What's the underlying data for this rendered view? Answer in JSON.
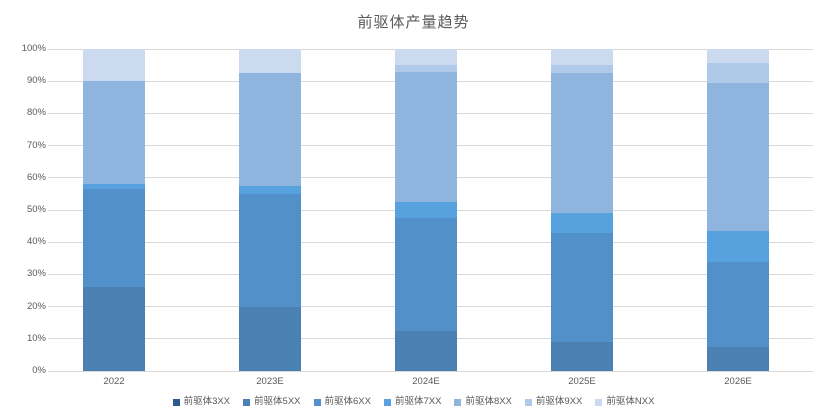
{
  "chart_data": {
    "type": "bar",
    "stacked": true,
    "percent_stacked": true,
    "title": "前驱体产量趋势",
    "xlabel": "",
    "ylabel": "",
    "categories": [
      "2022",
      "2023E",
      "2024E",
      "2025E",
      "2026E"
    ],
    "series": [
      {
        "name": "前驱体3XX",
        "color": "#2E598A",
        "values": [
          0,
          0,
          0,
          0,
          0
        ]
      },
      {
        "name": "前驱体5XX",
        "color": "#4A80B2",
        "values": [
          26,
          20,
          12.5,
          9,
          7.5
        ]
      },
      {
        "name": "前驱体6XX",
        "color": "#5190C9",
        "values": [
          30.5,
          35,
          35,
          34,
          26.5
        ]
      },
      {
        "name": "前驱体7XX",
        "color": "#58A1DF",
        "values": [
          1.5,
          2.5,
          5,
          6,
          9.5
        ]
      },
      {
        "name": "前驱体8XX",
        "color": "#8FB4DE",
        "values": [
          32,
          35,
          40.5,
          43.5,
          46
        ]
      },
      {
        "name": "前驱体9XX",
        "color": "#AFC9E8",
        "values": [
          0,
          0,
          2,
          2.5,
          6
        ]
      },
      {
        "name": "前驱体NXX",
        "color": "#CBDAEE",
        "values": [
          10,
          7.5,
          5,
          5,
          4.5
        ]
      }
    ],
    "ylim": [
      0,
      100
    ],
    "ytick_step": 10,
    "ytick_labels": [
      "0%",
      "10%",
      "20%",
      "30%",
      "40%",
      "50%",
      "60%",
      "70%",
      "80%",
      "90%",
      "100%"
    ],
    "grid": true,
    "gridline_color": "#D9D9D9",
    "axis_line_color": "#D9D9D9",
    "text_color": "#595959",
    "background_color": "#FFFFFF",
    "legend_position": "bottom"
  }
}
